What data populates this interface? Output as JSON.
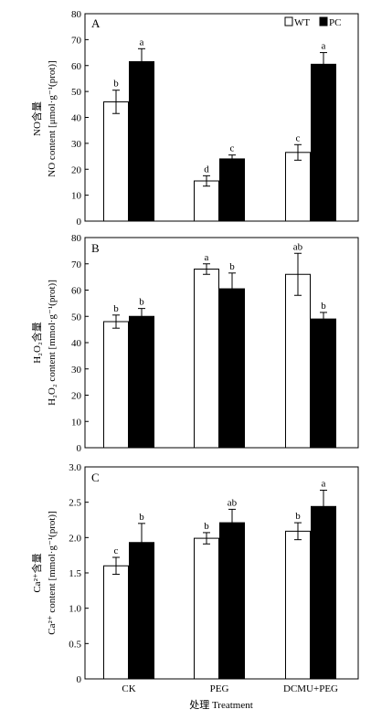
{
  "figure": {
    "xlabel": "处理 Treatment",
    "categories": [
      "CK",
      "PEG",
      "DCMU+PEG"
    ],
    "legend": [
      {
        "name": "WT",
        "color": "#ffffff"
      },
      {
        "name": "PC",
        "color": "#000000"
      }
    ]
  },
  "chart_data": [
    {
      "type": "bar",
      "panel": "A",
      "ylabel_cn": "NO含量",
      "ylabel_en": "NO content [μmol·g⁻¹(prot)]",
      "ylim": [
        0,
        80
      ],
      "yticks": [
        "0",
        "10",
        "20",
        "30",
        "40",
        "50",
        "60",
        "70",
        "80"
      ],
      "categories": [
        "CK",
        "PEG",
        "DCMU+PEG"
      ],
      "series": [
        {
          "name": "WT",
          "values": [
            46,
            15.5,
            26.5
          ],
          "errors": [
            4.5,
            2,
            3
          ],
          "letters": [
            "b",
            "d",
            "c"
          ]
        },
        {
          "name": "PC",
          "values": [
            61.5,
            24,
            60.5
          ],
          "errors": [
            5,
            1.5,
            4.5
          ],
          "letters": [
            "a",
            "c",
            "a"
          ]
        }
      ]
    },
    {
      "type": "bar",
      "panel": "B",
      "ylabel_cn": "H₂O₂含量",
      "ylabel_en": "H₂O₂ content [mmol·g⁻¹(prot)]",
      "ylim": [
        0,
        80
      ],
      "yticks": [
        "0",
        "10",
        "20",
        "30",
        "40",
        "50",
        "60",
        "70",
        "80"
      ],
      "categories": [
        "CK",
        "PEG",
        "DCMU+PEG"
      ],
      "series": [
        {
          "name": "WT",
          "values": [
            48,
            68,
            66
          ],
          "errors": [
            2.5,
            2,
            8
          ],
          "letters": [
            "b",
            "a",
            "ab"
          ]
        },
        {
          "name": "PC",
          "values": [
            50,
            60.5,
            49
          ],
          "errors": [
            3,
            6,
            2.5
          ],
          "letters": [
            "b",
            "b",
            "b"
          ]
        }
      ]
    },
    {
      "type": "bar",
      "panel": "C",
      "ylabel_cn": "Ca²⁺含量",
      "ylabel_en": "Ca²⁺ content [mmol·g⁻¹(prot)]",
      "ylim": [
        0,
        3.0
      ],
      "yticks": [
        "0",
        "0.5",
        "1.0",
        "1.5",
        "2.0",
        "2.5",
        "3.0"
      ],
      "categories": [
        "CK",
        "PEG",
        "DCMU+PEG"
      ],
      "series": [
        {
          "name": "WT",
          "values": [
            1.6,
            1.99,
            2.09
          ],
          "errors": [
            0.12,
            0.08,
            0.12
          ],
          "letters": [
            "c",
            "b",
            "b"
          ]
        },
        {
          "name": "PC",
          "values": [
            1.93,
            2.21,
            2.44
          ],
          "errors": [
            0.27,
            0.19,
            0.23
          ],
          "letters": [
            "b",
            "ab",
            "a"
          ]
        }
      ]
    }
  ]
}
